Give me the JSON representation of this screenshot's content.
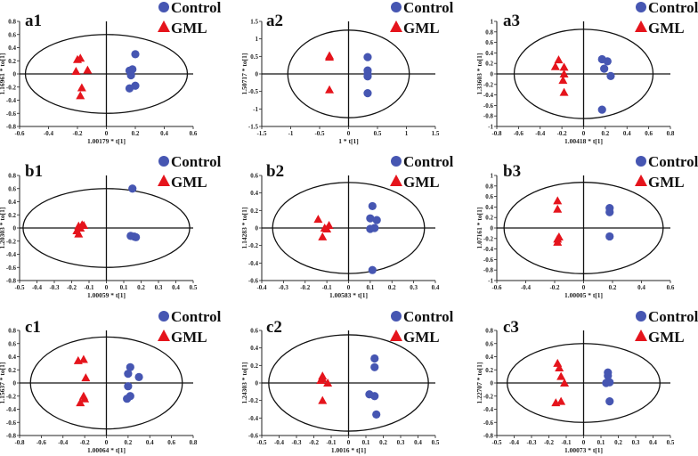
{
  "colors": {
    "control": "#4656b2",
    "gml": "#e5141c"
  },
  "legend": {
    "control": "Control",
    "gml": "GML"
  },
  "chart_data": [
    {
      "type": "scatter",
      "title": "a1",
      "xlabel": "1.00179 * t[1]",
      "ylabel": "1.16961 * to[1]",
      "xlim": [
        -0.6,
        0.6
      ],
      "ylim": [
        -0.8,
        0.8
      ],
      "xticks": [
        "-0.6",
        "-0.4",
        "-0.2",
        "0",
        "0.2",
        "0.4",
        "0.6"
      ],
      "yticks": [
        "-0.8",
        "-0.6",
        "-0.4",
        "-0.2",
        "0",
        "0.2",
        "0.4",
        "0.6",
        "0.8"
      ],
      "ellipse": [
        0.56,
        0.6
      ],
      "series": [
        {
          "name": "Control",
          "points": [
            [
              0.2,
              0.3
            ],
            [
              0.16,
              0.05
            ],
            [
              0.18,
              0.07
            ],
            [
              0.17,
              -0.02
            ],
            [
              0.16,
              -0.22
            ],
            [
              0.2,
              -0.18
            ]
          ]
        },
        {
          "name": "GML",
          "points": [
            [
              -0.2,
              0.22
            ],
            [
              -0.18,
              0.24
            ],
            [
              -0.21,
              0.04
            ],
            [
              -0.13,
              0.06
            ],
            [
              -0.17,
              -0.21
            ],
            [
              -0.18,
              -0.33
            ]
          ]
        }
      ]
    },
    {
      "type": "scatter",
      "title": "a2",
      "xlabel": "1 * t[1]",
      "ylabel": "1.50717 * to[1]",
      "xlim": [
        -1.5,
        1.5
      ],
      "ylim": [
        -1.5,
        1.5
      ],
      "xticks": [
        "-1.5",
        "-1",
        "-0.5",
        "0",
        "0.5",
        "1",
        "1.5"
      ],
      "yticks": [
        "-1.5",
        "-1",
        "-0.5",
        "0",
        "0.5",
        "1",
        "1.5"
      ],
      "ellipse": [
        1.05,
        1.25
      ],
      "series": [
        {
          "name": "Control",
          "points": [
            [
              0.33,
              0.48
            ],
            [
              0.33,
              0.1
            ],
            [
              0.33,
              0.0
            ],
            [
              0.33,
              -0.07
            ],
            [
              0.33,
              -0.55
            ]
          ]
        },
        {
          "name": "GML",
          "points": [
            [
              -0.33,
              0.52
            ],
            [
              -0.33,
              0.48
            ],
            [
              -0.33,
              -0.45
            ]
          ]
        }
      ]
    },
    {
      "type": "scatter",
      "title": "a3",
      "xlabel": "1.00418 * t[1]",
      "ylabel": "1.33603 * to[1]",
      "xlim": [
        -0.8,
        0.8
      ],
      "ylim": [
        -1,
        1
      ],
      "xticks": [
        "-0.8",
        "-0.6",
        "-0.4",
        "-0.2",
        "0",
        "0.2",
        "0.4",
        "0.6",
        "0.8"
      ],
      "yticks": [
        "-1",
        "-0.8",
        "-0.6",
        "-0.4",
        "-0.2",
        "0",
        "0.2",
        "0.4",
        "0.6",
        "0.8",
        "1"
      ],
      "ellipse": [
        0.64,
        0.85
      ],
      "series": [
        {
          "name": "Control",
          "points": [
            [
              0.17,
              0.28
            ],
            [
              0.22,
              0.24
            ],
            [
              0.19,
              0.1
            ],
            [
              0.25,
              -0.04
            ],
            [
              0.17,
              -0.68
            ]
          ]
        },
        {
          "name": "GML",
          "points": [
            [
              -0.23,
              0.27
            ],
            [
              -0.26,
              0.14
            ],
            [
              -0.18,
              0.13
            ],
            [
              -0.18,
              0.0
            ],
            [
              -0.19,
              -0.12
            ],
            [
              -0.18,
              -0.35
            ]
          ]
        }
      ]
    },
    {
      "type": "scatter",
      "title": "b1",
      "xlabel": "1.00059 * t[1]",
      "ylabel": "1.20303 * to[1]",
      "xlim": [
        -0.5,
        0.5
      ],
      "ylim": [
        -0.8,
        0.8
      ],
      "xticks": [
        "-0.5",
        "-0.4",
        "-0.3",
        "-0.2",
        "-0.1",
        "0",
        "0.1",
        "0.2",
        "0.3",
        "0.4",
        "0.5"
      ],
      "yticks": [
        "-0.8",
        "-0.6",
        "-0.4",
        "-0.2",
        "0",
        "0.2",
        "0.4",
        "0.6",
        "0.8"
      ],
      "ellipse": [
        0.48,
        0.6
      ],
      "series": [
        {
          "name": "Control",
          "points": [
            [
              0.15,
              0.6
            ],
            [
              0.14,
              -0.12
            ],
            [
              0.16,
              -0.13
            ],
            [
              0.17,
              -0.14
            ]
          ]
        },
        {
          "name": "GML",
          "points": [
            [
              -0.16,
              0.03
            ],
            [
              -0.14,
              0.05
            ],
            [
              -0.13,
              0.04
            ],
            [
              -0.17,
              -0.04
            ],
            [
              -0.16,
              -0.09
            ],
            [
              -0.15,
              0.0
            ]
          ]
        }
      ]
    },
    {
      "type": "scatter",
      "title": "b2",
      "xlabel": "1.00583 * t[1]",
      "ylabel": "1.14283 * to[1]",
      "xlim": [
        -0.4,
        0.4
      ],
      "ylim": [
        -0.6,
        0.6
      ],
      "xticks": [
        "-0.4",
        "-0.3",
        "-0.2",
        "-0.1",
        "0",
        "0.1",
        "0.2",
        "0.3",
        "0.4"
      ],
      "yticks": [
        "-0.6",
        "-0.4",
        "-0.2",
        "0",
        "0.2",
        "0.4",
        "0.6"
      ],
      "ellipse": [
        0.35,
        0.52
      ],
      "series": [
        {
          "name": "Control",
          "points": [
            [
              0.11,
              0.25
            ],
            [
              0.1,
              0.11
            ],
            [
              0.13,
              0.09
            ],
            [
              0.12,
              0.0
            ],
            [
              0.1,
              -0.01
            ],
            [
              0.11,
              -0.48
            ]
          ]
        },
        {
          "name": "GML",
          "points": [
            [
              -0.14,
              0.1
            ],
            [
              -0.09,
              0.03
            ],
            [
              -0.1,
              -0.01
            ],
            [
              -0.12,
              -0.1
            ],
            [
              -0.11,
              0.0
            ]
          ]
        }
      ]
    },
    {
      "type": "scatter",
      "title": "b3",
      "xlabel": "1.00005 * t[1]",
      "ylabel": "1.07161 * to[1]",
      "xlim": [
        -0.6,
        0.6
      ],
      "ylim": [
        -1,
        1
      ],
      "xticks": [
        "-0.6",
        "-0.4",
        "-0.2",
        "0",
        "0.2",
        "0.4",
        "0.6"
      ],
      "yticks": [
        "-1",
        "-0.8",
        "-0.6",
        "-0.4",
        "-0.2",
        "0",
        "0.2",
        "0.4",
        "0.6",
        "0.8",
        "1"
      ],
      "ellipse": [
        0.55,
        0.87
      ],
      "series": [
        {
          "name": "Control",
          "points": [
            [
              0.18,
              0.38
            ],
            [
              0.18,
              0.3
            ],
            [
              0.18,
              -0.16
            ]
          ]
        },
        {
          "name": "GML",
          "points": [
            [
              -0.18,
              0.52
            ],
            [
              -0.18,
              0.36
            ],
            [
              -0.17,
              -0.17
            ],
            [
              -0.18,
              -0.21
            ],
            [
              -0.18,
              -0.27
            ]
          ]
        }
      ]
    },
    {
      "type": "scatter",
      "title": "c1",
      "xlabel": "1.00064 * t[1]",
      "ylabel": "1.15637 * to[1]",
      "xlim": [
        -0.8,
        0.8
      ],
      "ylim": [
        -0.8,
        0.8
      ],
      "xticks": [
        "-0.8",
        "-0.6",
        "-0.4",
        "-0.2",
        "0",
        "0.2",
        "0.4",
        "0.6",
        "0.8"
      ],
      "yticks": [
        "-0.8",
        "-0.6",
        "-0.4",
        "-0.2",
        "0",
        "0.2",
        "0.4",
        "0.6",
        "0.8"
      ],
      "ellipse": [
        0.7,
        0.7
      ],
      "series": [
        {
          "name": "Control",
          "points": [
            [
              0.22,
              0.24
            ],
            [
              0.2,
              0.14
            ],
            [
              0.3,
              0.09
            ],
            [
              0.2,
              -0.05
            ],
            [
              0.22,
              -0.2
            ],
            [
              0.19,
              -0.24
            ]
          ]
        },
        {
          "name": "GML",
          "points": [
            [
              -0.26,
              0.34
            ],
            [
              -0.21,
              0.36
            ],
            [
              -0.19,
              0.08
            ],
            [
              -0.21,
              -0.2
            ],
            [
              -0.2,
              -0.24
            ],
            [
              -0.24,
              -0.3
            ]
          ]
        }
      ]
    },
    {
      "type": "scatter",
      "title": "c2",
      "xlabel": "1.0016 * t[1]",
      "ylabel": "1.24303 * to[1]",
      "xlim": [
        -0.5,
        0.5
      ],
      "ylim": [
        -0.6,
        0.6
      ],
      "xticks": [
        "-0.5",
        "-0.4",
        "-0.3",
        "-0.2",
        "-0.1",
        "0",
        "0.1",
        "0.2",
        "0.3",
        "0.4",
        "0.5"
      ],
      "yticks": [
        "-0.6",
        "-0.4",
        "-0.2",
        "0",
        "0.2",
        "0.4",
        "0.6"
      ],
      "ellipse": [
        0.46,
        0.55
      ],
      "series": [
        {
          "name": "Control",
          "points": [
            [
              0.15,
              0.28
            ],
            [
              0.15,
              0.18
            ],
            [
              0.12,
              -0.13
            ],
            [
              0.15,
              -0.15
            ],
            [
              0.16,
              -0.36
            ]
          ]
        },
        {
          "name": "GML",
          "points": [
            [
              -0.15,
              0.08
            ],
            [
              -0.15,
              0.05
            ],
            [
              -0.16,
              0.03
            ],
            [
              -0.12,
              0.0
            ],
            [
              -0.15,
              -0.2
            ]
          ]
        }
      ]
    },
    {
      "type": "scatter",
      "title": "c3",
      "xlabel": "1.00073 * t[1]",
      "ylabel": "1.22707 * to[1]",
      "xlim": [
        -0.5,
        0.5
      ],
      "ylim": [
        -0.8,
        0.8
      ],
      "xticks": [
        "-0.5",
        "-0.4",
        "-0.3",
        "-0.2",
        "-0.1",
        "0",
        "0.1",
        "0.2",
        "0.3",
        "0.4",
        "0.5"
      ],
      "yticks": [
        "-0.8",
        "-0.6",
        "-0.4",
        "-0.2",
        "0",
        "0.2",
        "0.4",
        "0.6",
        "0.8"
      ],
      "ellipse": [
        0.44,
        0.6
      ],
      "series": [
        {
          "name": "Control",
          "points": [
            [
              0.14,
              0.16
            ],
            [
              0.14,
              0.11
            ],
            [
              0.13,
              0.0
            ],
            [
              0.15,
              0.01
            ],
            [
              0.15,
              -0.28
            ]
          ]
        },
        {
          "name": "GML",
          "points": [
            [
              -0.15,
              0.3
            ],
            [
              -0.14,
              0.23
            ],
            [
              -0.13,
              0.1
            ],
            [
              -0.11,
              0.0
            ],
            [
              -0.16,
              -0.3
            ],
            [
              -0.13,
              -0.28
            ]
          ]
        }
      ]
    }
  ]
}
